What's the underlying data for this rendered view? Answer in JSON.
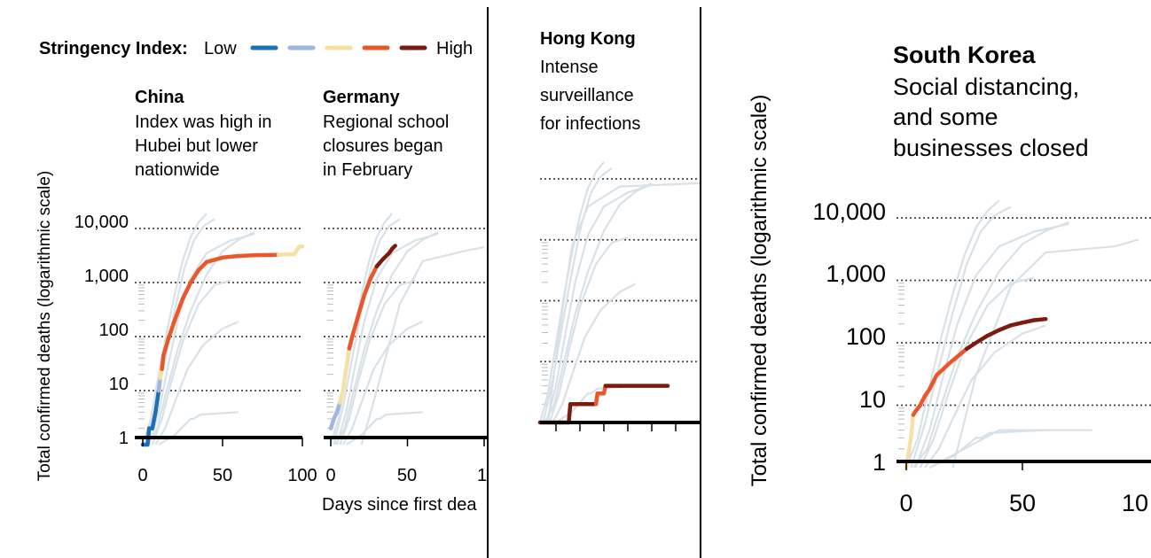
{
  "legend": {
    "label": "Stringency Index:",
    "low": "Low",
    "high": "High",
    "colors": [
      "#1f6fb5",
      "#9fb6e0",
      "#f7e0a3",
      "#e8582a",
      "#7a1b10"
    ]
  },
  "colors": {
    "background_curve": "#d9e1e8",
    "axis": "#000000",
    "grid": "#555555"
  },
  "panels": {
    "left": {
      "ylabel": "Total confirmed deaths (logarithmic scale)",
      "xlabel": "Days since first dea",
      "yticks": [
        "10,000",
        "1,000",
        "100",
        "10",
        "1"
      ],
      "china": {
        "title": "China",
        "subtitle": [
          "Index was high in",
          "Hubei but lower",
          "nationwide"
        ],
        "xticks": [
          "0",
          "50",
          "100"
        ]
      },
      "germany": {
        "title": "Germany",
        "subtitle": [
          "Regional school",
          "closures began",
          "in February"
        ],
        "xticks": [
          "0",
          "50",
          "1("
        ]
      }
    },
    "hongkong": {
      "title": "Hong Kong",
      "subtitle": [
        "Intense",
        "surveillance",
        "for infections"
      ]
    },
    "southkorea": {
      "title": "South Korea",
      "subtitle": [
        "Social distancing,",
        "and some",
        "businesses closed"
      ],
      "ylabel": "Total confirmed deaths (logarithmic scale)",
      "yticks": [
        "10,000",
        "1,000",
        "100",
        "10",
        "1"
      ],
      "xticks": [
        "0",
        "50",
        "10"
      ]
    }
  },
  "chart_data": [
    {
      "type": "line",
      "title": "China",
      "yscale": "log",
      "ylim": [
        1,
        10000
      ],
      "xlim": [
        0,
        100
      ],
      "series": [
        {
          "points": [
            [
              0,
              1
            ],
            [
              3,
              1
            ],
            [
              4,
              2
            ],
            [
              6,
              2
            ],
            [
              8,
              4
            ],
            [
              10,
              10
            ],
            [
              11,
              17
            ],
            [
              12,
              25
            ],
            [
              13,
              45
            ],
            [
              16,
              90
            ],
            [
              20,
              200
            ],
            [
              25,
              500
            ],
            [
              30,
              1000
            ],
            [
              35,
              1700
            ],
            [
              40,
              2400
            ],
            [
              50,
              2900
            ],
            [
              60,
              3100
            ],
            [
              70,
              3200
            ],
            [
              85,
              3250
            ],
            [
              88,
              3300
            ],
            [
              95,
              3350
            ],
            [
              98,
              4600
            ],
            [
              100,
              4650
            ]
          ],
          "stringency": [
            0,
            0,
            0,
            0,
            0,
            0,
            1,
            2,
            3,
            3,
            3,
            3,
            3,
            3,
            3,
            3,
            3,
            3,
            3,
            2,
            2,
            2,
            2
          ]
        }
      ]
    },
    {
      "type": "line",
      "title": "Germany",
      "yscale": "log",
      "ylim": [
        1,
        10000
      ],
      "xlim": [
        0,
        100
      ],
      "series": [
        {
          "points": [
            [
              0,
              2
            ],
            [
              2,
              3
            ],
            [
              4,
              4
            ],
            [
              6,
              6
            ],
            [
              8,
              10
            ],
            [
              10,
              25
            ],
            [
              12,
              60
            ],
            [
              14,
              100
            ],
            [
              18,
              250
            ],
            [
              22,
              600
            ],
            [
              26,
              1200
            ],
            [
              30,
              2000
            ],
            [
              34,
              2700
            ],
            [
              38,
              3500
            ],
            [
              40,
              4200
            ],
            [
              42,
              4800
            ]
          ],
          "stringency": [
            1,
            1,
            1,
            1,
            2,
            2,
            2,
            3,
            3,
            3,
            3,
            3,
            4,
            4,
            4,
            4
          ]
        }
      ]
    },
    {
      "type": "line",
      "title": "Hong Kong",
      "yscale": "log",
      "ylim": [
        1,
        10000
      ],
      "xlim": [
        0,
        100
      ],
      "series": [
        {
          "points": [
            [
              0,
              1
            ],
            [
              18,
              1
            ],
            [
              19,
              2
            ],
            [
              35,
              2
            ],
            [
              36,
              3
            ],
            [
              40,
              3
            ],
            [
              41,
              4
            ],
            [
              50,
              4
            ],
            [
              80,
              4
            ]
          ],
          "stringency": [
            4,
            4,
            4,
            4,
            3,
            3,
            3,
            4,
            4
          ]
        }
      ]
    },
    {
      "type": "line",
      "title": "South Korea",
      "yscale": "log",
      "ylim": [
        1,
        10000
      ],
      "xlim": [
        0,
        100
      ],
      "series": [
        {
          "points": [
            [
              0,
              1
            ],
            [
              2,
              3
            ],
            [
              3,
              7
            ],
            [
              4,
              8
            ],
            [
              6,
              10
            ],
            [
              8,
              14
            ],
            [
              10,
              18
            ],
            [
              13,
              30
            ],
            [
              18,
              45
            ],
            [
              22,
              60
            ],
            [
              26,
              80
            ],
            [
              30,
              100
            ],
            [
              35,
              130
            ],
            [
              40,
              160
            ],
            [
              45,
              190
            ],
            [
              50,
              210
            ],
            [
              55,
              230
            ],
            [
              60,
              240
            ]
          ],
          "stringency": [
            2,
            2,
            2,
            3,
            3,
            3,
            3,
            3,
            3,
            3,
            3,
            4,
            4,
            4,
            4,
            4,
            4,
            4
          ]
        }
      ]
    }
  ]
}
